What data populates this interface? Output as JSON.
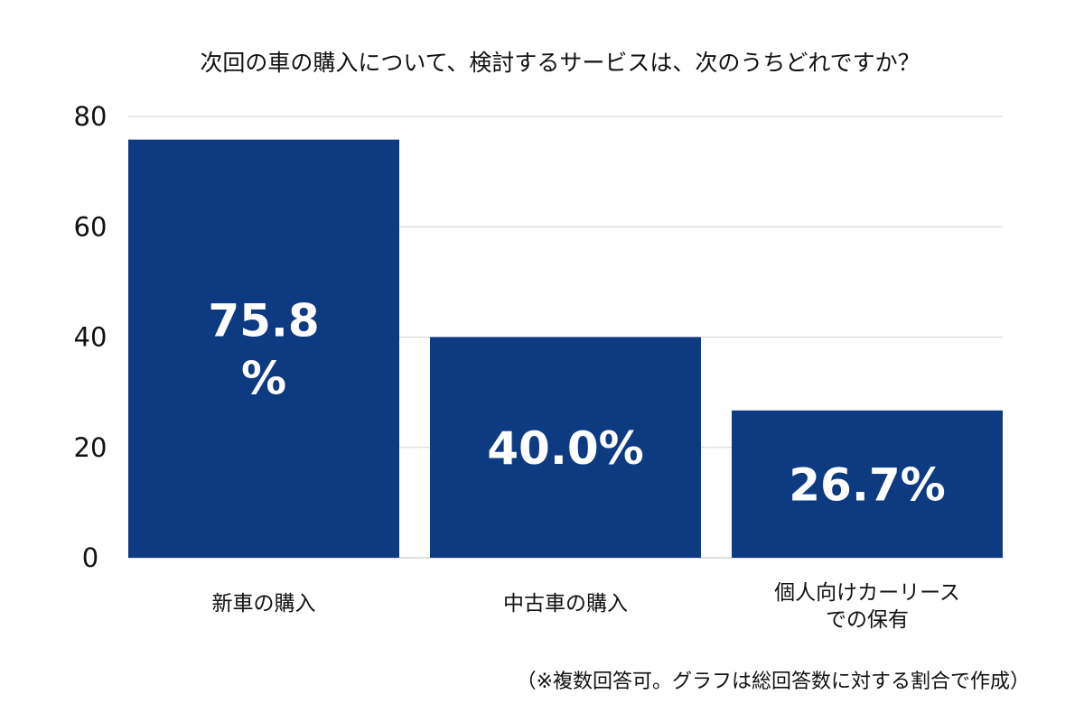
{
  "chart_data": {
    "type": "bar",
    "title": "次回の車の購入について、検討するサービスは、次のうちどれですか？",
    "categories": [
      [
        "新車の購入"
      ],
      [
        "中古車の購入"
      ],
      [
        "個人向けカーリース",
        "での保有"
      ]
    ],
    "values": [
      75.8,
      40.0,
      26.7
    ],
    "data_labels": [
      [
        "75.8",
        "%"
      ],
      [
        "40.0%"
      ],
      [
        "26.7%"
      ]
    ],
    "ylim": [
      0,
      80
    ],
    "yticks": [
      0,
      20,
      40,
      60,
      80
    ],
    "grid": true,
    "xlabel": "",
    "ylabel": "",
    "footnote": "（※複数回答可。グラフは総回答数に対する割合で作成）"
  },
  "colors": {
    "bar": "#0d3a80",
    "grid": "#d4d4d4",
    "axis": "#bdbdbd"
  }
}
